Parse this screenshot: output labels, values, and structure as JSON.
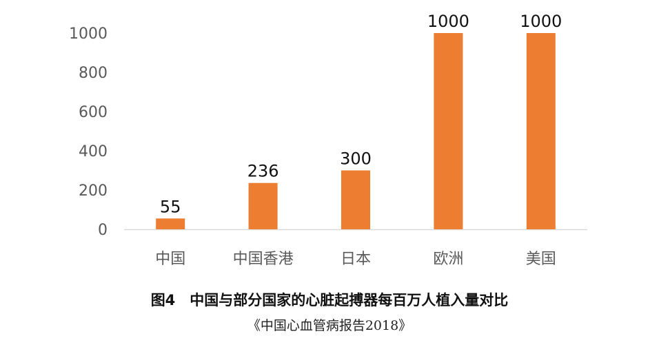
{
  "chart_data": {
    "type": "bar",
    "title": "图4　中国与部分国家的心脏起搏器每百万人植入量对比",
    "source": "《中国心血管病报告2018》",
    "categories": [
      "中国",
      "中国香港",
      "日本",
      "欧洲",
      "美国"
    ],
    "values": [
      55,
      236,
      300,
      1000,
      1000
    ],
    "data_labels": [
      "55",
      "236",
      "300",
      "1000",
      "1000"
    ],
    "yticks": [
      "0",
      "200",
      "400",
      "600",
      "800",
      "1000"
    ],
    "ylim": [
      0,
      1000
    ],
    "xlabel": "",
    "ylabel": "",
    "grid": false,
    "bar_color": "#ED7D31"
  }
}
